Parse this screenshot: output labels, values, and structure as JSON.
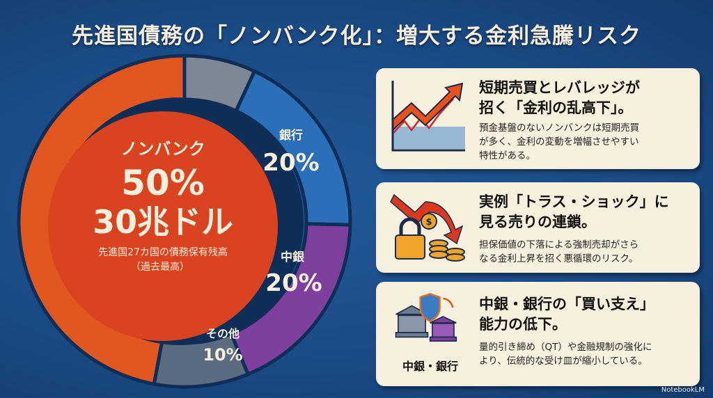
{
  "title": "先進国債務の「ノンバンク化」：増大する金利急騰リスク",
  "chart_data": {
    "type": "pie",
    "title": "先進国27カ国の債務保有残高",
    "center": {
      "label": "ノンバンク",
      "percent": "50%",
      "amount": "30兆ドル",
      "caption1": "先進国27カ国の債務保有残高",
      "caption2": "（過去最高）"
    },
    "segments": [
      {
        "name": "ノンバンク",
        "value": 50,
        "label": "",
        "color": "#e2561f"
      },
      {
        "name": "銀行",
        "value": 20,
        "label": "20%",
        "color": "#2b6fb8"
      },
      {
        "name": "中銀",
        "value": 20,
        "label": "20%",
        "color": "#7e3f9e"
      },
      {
        "name": "その他",
        "value": 10,
        "label": "10%",
        "color": "#5b6b80"
      }
    ]
  },
  "cards": [
    {
      "title1": "短期売買とレバレッジが",
      "title2": "招く「金利の乱高下」。",
      "body1": "預金基盤のないノンバンクは短期売買",
      "body2": "が多く、金利の変動を増幅させやすい",
      "body3": "特性がある。",
      "icon": "rising-chart-icon"
    },
    {
      "title1": "実例「トラス・ショック」に",
      "title2": "見る売りの連鎖。",
      "body1": "担保価値の下落による強制売却がさら",
      "body2": "なる金利上昇を招く悪循環のリスク。",
      "icon": "lock-coins-falling-arrow-icon"
    },
    {
      "title1": "中銀・銀行の「買い支え」",
      "title2": "能力の低下。",
      "body1": "量的引き締め（QT）や金融規制の強化に",
      "body2": "より、伝統的な受け皿が縮小している。",
      "icon_label": "中銀・銀行",
      "icon": "bank-shield-icon"
    }
  ],
  "footer": "NotebookLM"
}
